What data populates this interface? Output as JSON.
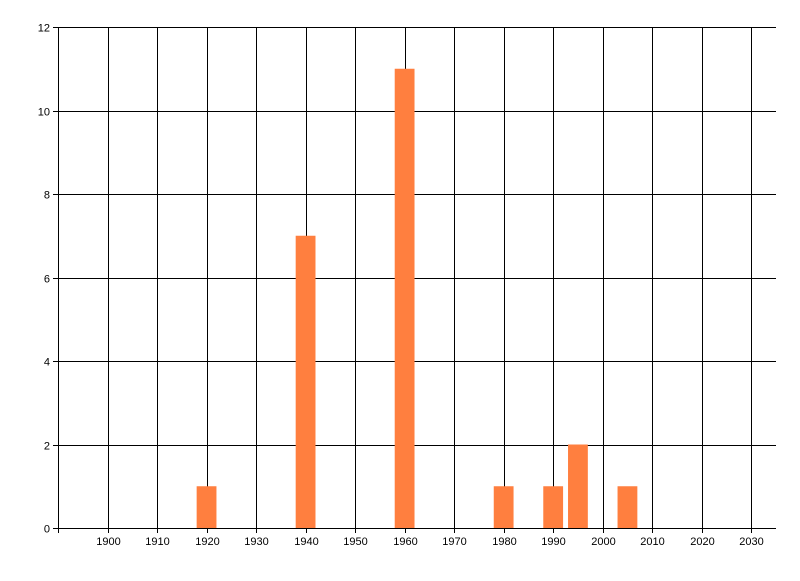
{
  "chart_data": {
    "type": "bar",
    "title": "",
    "xlabel": "",
    "ylabel": "",
    "x": [
      1920,
      1940,
      1960,
      1980,
      1990,
      1995,
      2005
    ],
    "values": [
      1,
      7,
      11,
      1,
      1,
      2,
      1
    ],
    "bar_width_years": 4,
    "xlim": [
      1890,
      2035
    ],
    "ylim": [
      0,
      12
    ],
    "x_ticks": [
      1900,
      1910,
      1920,
      1930,
      1940,
      1950,
      1960,
      1970,
      1980,
      1990,
      2000,
      2010,
      2020,
      2030
    ],
    "y_ticks": [
      0,
      2,
      4,
      6,
      8,
      10,
      12
    ],
    "grid": true,
    "legend": "none",
    "colors": {
      "bar": "#FF7F3F",
      "grid": "#000000",
      "text": "#000000"
    }
  }
}
